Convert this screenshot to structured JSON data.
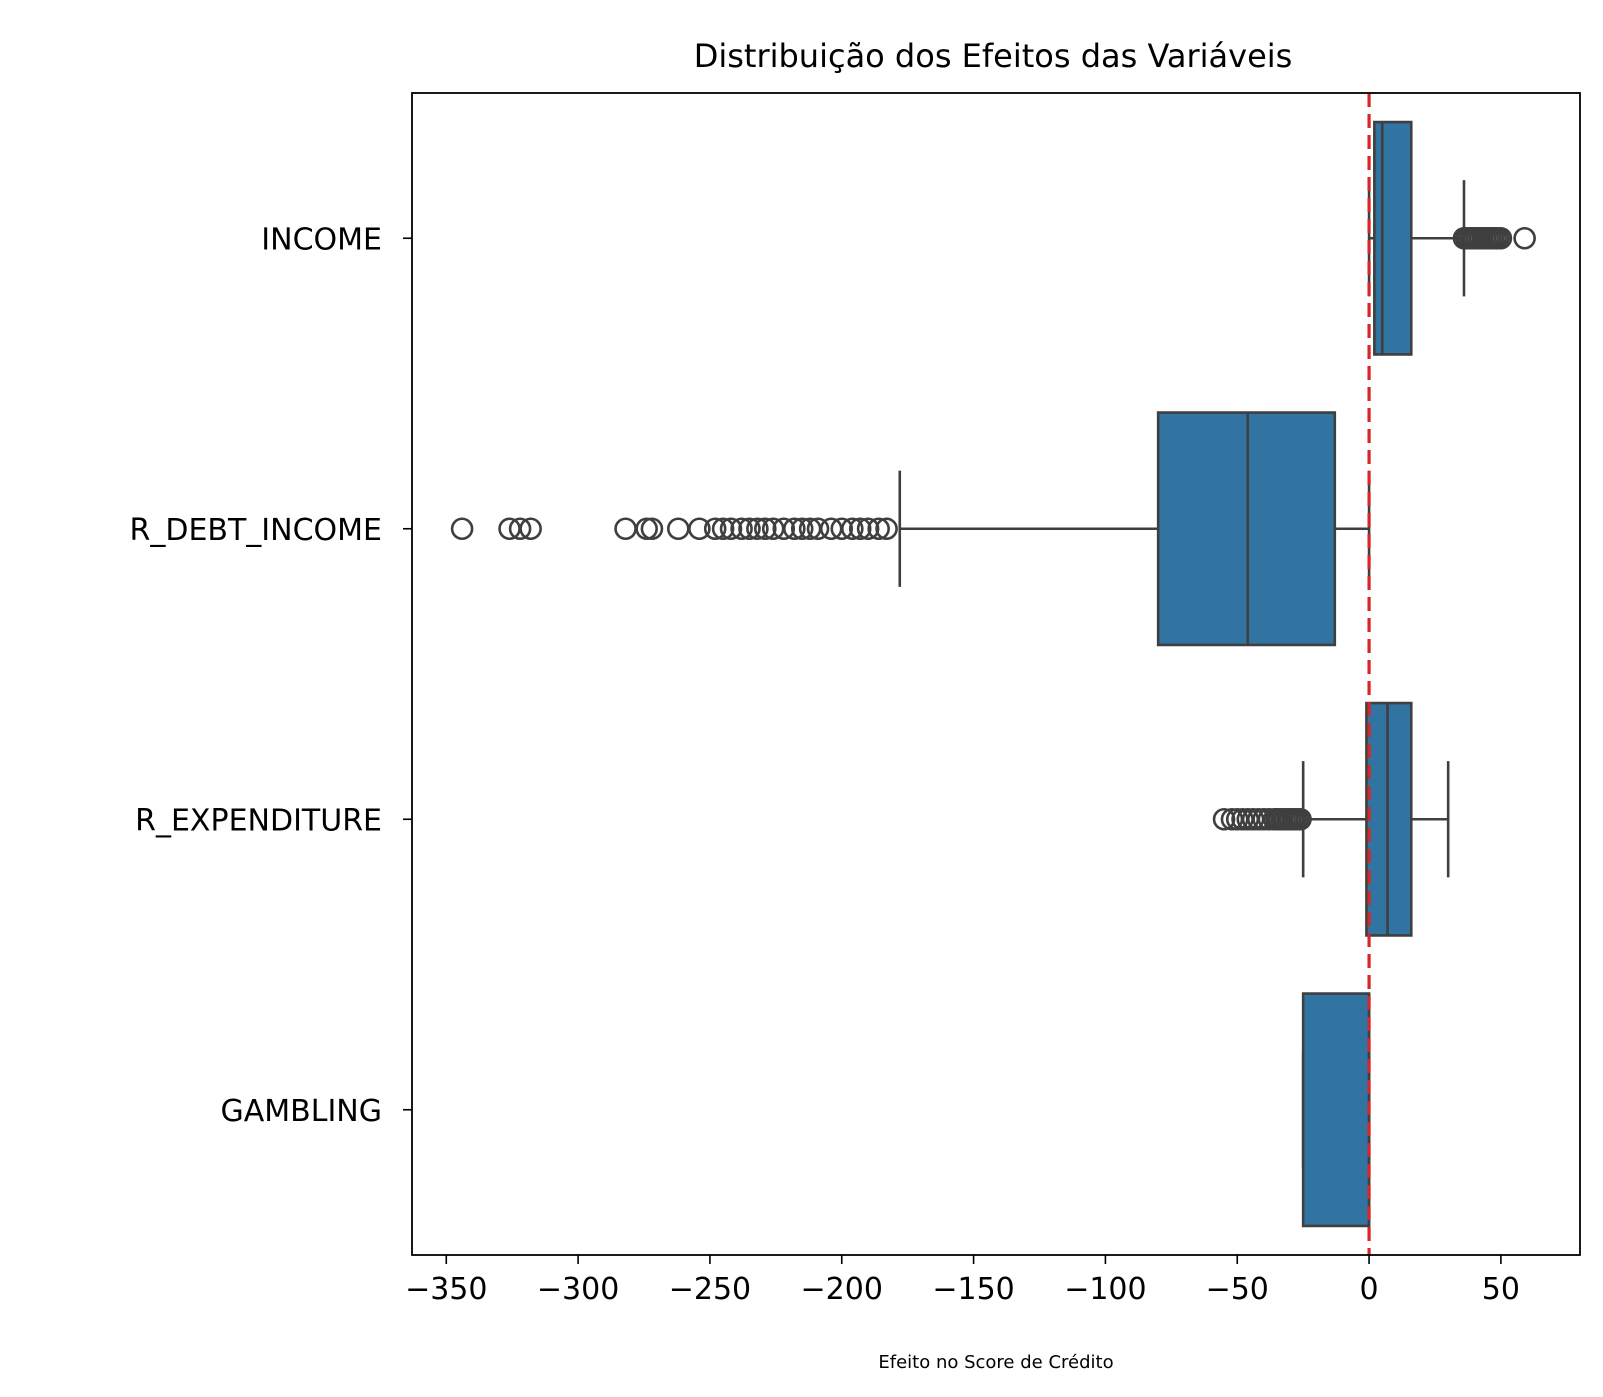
{
  "chart_data": {
    "type": "boxplot",
    "orientation": "horizontal",
    "title": "Distribuição dos Efeitos das Variáveis",
    "xlabel": "Efeito no Score de Crédito",
    "ylabel": "",
    "xlim": [
      -363,
      80
    ],
    "x_ticks": [
      -350,
      -300,
      -250,
      -200,
      -150,
      -100,
      -50,
      0,
      50
    ],
    "x_tick_labels": [
      "−350",
      "−300",
      "−250",
      "−200",
      "−150",
      "−100",
      "−50",
      "0",
      "50"
    ],
    "categories": [
      "INCOME",
      "R_DEBT_INCOME",
      "R_EXPENDITURE",
      "GAMBLING"
    ],
    "grid": false,
    "legend": "none",
    "box_color": "#3274a1",
    "edge_color": "#3f3f3f",
    "reference_line": {
      "x": 0,
      "color": "#d62728",
      "style": "dashed"
    },
    "boxes": [
      {
        "category": "INCOME",
        "whisker_low": 0,
        "q1": 2,
        "median": 5,
        "q3": 16,
        "whisker_high": 36,
        "outliers": [
          36,
          37,
          38,
          39,
          40,
          41,
          42,
          43,
          44,
          45,
          46,
          47,
          48,
          49,
          50,
          59
        ]
      },
      {
        "category": "R_DEBT_INCOME",
        "whisker_low": -178,
        "q1": -80,
        "median": -46,
        "q3": -13,
        "whisker_high": 0,
        "outliers": [
          -344,
          -326,
          -322,
          -318,
          -282,
          -274,
          -272,
          -262,
          -254,
          -248,
          -245,
          -242,
          -238,
          -235,
          -232,
          -229,
          -226,
          -222,
          -218,
          -215,
          -212,
          -209,
          -204,
          -200,
          -196,
          -193,
          -190,
          -186,
          -183
        ]
      },
      {
        "category": "R_EXPENDITURE",
        "whisker_low": -25,
        "q1": -1,
        "median": 7,
        "q3": 16,
        "whisker_high": 30,
        "outliers": [
          -55,
          -52,
          -50,
          -48,
          -46,
          -44,
          -42,
          -40,
          -38,
          -36,
          -35,
          -34,
          -33,
          -32,
          -31,
          -30,
          -29,
          -28,
          -27,
          -26
        ]
      },
      {
        "category": "GAMBLING",
        "whisker_low": -25,
        "q1": -25,
        "median": 0,
        "q3": 0,
        "whisker_high": 0,
        "outliers": []
      }
    ]
  }
}
